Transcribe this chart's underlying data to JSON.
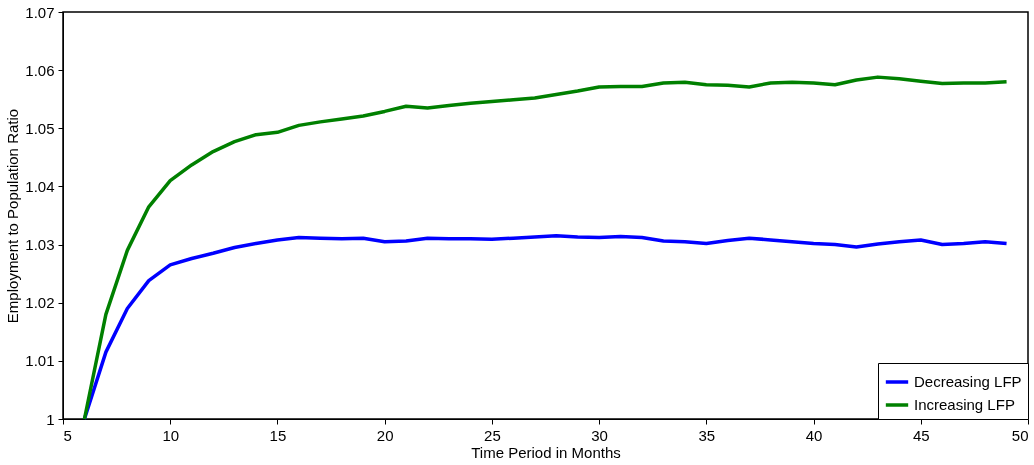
{
  "chart_data": {
    "type": "line",
    "xlabel": "Time  Period in Months",
    "ylabel": "Employment to Population Ratio",
    "x": [
      6,
      7,
      8,
      9,
      10,
      11,
      12,
      13,
      14,
      15,
      16,
      17,
      18,
      19,
      20,
      21,
      22,
      23,
      24,
      25,
      26,
      27,
      28,
      29,
      30,
      31,
      32,
      33,
      34,
      35,
      36,
      37,
      38,
      39,
      40,
      41,
      42,
      43,
      44,
      45,
      46,
      47,
      48,
      49
    ],
    "series": [
      {
        "name": "Decreasing LFP",
        "color": "#0000ff",
        "values": [
          1.0,
          1.0115,
          1.019,
          1.0238,
          1.0265,
          1.0276,
          1.0285,
          1.0295,
          1.0302,
          1.0308,
          1.0312,
          1.0311,
          1.031,
          1.0311,
          1.0305,
          1.0306,
          1.0311,
          1.031,
          1.031,
          1.0309,
          1.0311,
          1.0313,
          1.0315,
          1.0313,
          1.0312,
          1.0314,
          1.0312,
          1.0306,
          1.0305,
          1.0302,
          1.0307,
          1.0311,
          1.0308,
          1.0305,
          1.0302,
          1.03,
          1.0296,
          1.0301,
          1.0305,
          1.0308,
          1.03,
          1.0302,
          1.0305,
          1.0302
        ]
      },
      {
        "name": "Increasing LFP",
        "color": "#008000",
        "values": [
          1.0,
          1.018,
          1.029,
          1.0365,
          1.041,
          1.0437,
          1.046,
          1.0477,
          1.0489,
          1.0493,
          1.0505,
          1.0511,
          1.0516,
          1.0521,
          1.0529,
          1.0538,
          1.0535,
          1.0539,
          1.0543,
          1.0546,
          1.0549,
          1.0552,
          1.0558,
          1.0564,
          1.0571,
          1.0572,
          1.0572,
          1.0578,
          1.0579,
          1.0575,
          1.0574,
          1.0571,
          1.0578,
          1.0579,
          1.0578,
          1.0575,
          1.0583,
          1.0588,
          1.0585,
          1.0581,
          1.0577,
          1.0578,
          1.0578,
          1.058
        ]
      }
    ],
    "xlim": [
      5,
      50
    ],
    "xticks": [
      5,
      10,
      15,
      20,
      25,
      30,
      35,
      40,
      45,
      50
    ],
    "ylim": [
      1,
      1.07
    ],
    "yticks": [
      1,
      1.01,
      1.02,
      1.03,
      1.04,
      1.05,
      1.06,
      1.07
    ],
    "grid": false,
    "legend": "bottom right",
    "marker": "none",
    "line_style": "solid"
  }
}
